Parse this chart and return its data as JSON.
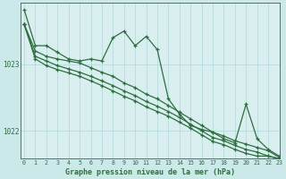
{
  "background_color": "#cce9e9",
  "plot_bg_color": "#d9efef",
  "grid_color": "#b2d8d8",
  "line_color": "#2d6e3e",
  "xlabel": "Graphe pression niveau de la mer (hPa)",
  "ylim": [
    1021.58,
    1023.92
  ],
  "xlim": [
    -0.3,
    23
  ],
  "yticks": [
    1022,
    1023
  ],
  "xtick_labels": [
    "0",
    "1",
    "2",
    "3",
    "4",
    "5",
    "6",
    "7",
    "8",
    "9",
    "10",
    "11",
    "12",
    "13",
    "14",
    "15",
    "16",
    "17",
    "18",
    "19",
    "20",
    "21",
    "22",
    "23"
  ],
  "s1": [
    1023.82,
    1023.28,
    1023.28,
    1023.18,
    1023.08,
    1023.05,
    1023.08,
    1023.05,
    1023.4,
    1023.5,
    1023.28,
    1023.42,
    1023.22,
    1022.48,
    1022.25,
    1022.08,
    1022.02,
    1021.98,
    1021.88,
    1021.82,
    1022.4,
    1021.88,
    1021.72,
    1021.62
  ],
  "s2": [
    1023.6,
    1023.2,
    1023.12,
    1023.08,
    1023.05,
    1023.02,
    1022.95,
    1022.88,
    1022.82,
    1022.72,
    1022.65,
    1022.55,
    1022.48,
    1022.38,
    1022.28,
    1022.18,
    1022.08,
    1021.98,
    1021.92,
    1021.85,
    1021.8,
    1021.75,
    1021.7,
    1021.6
  ],
  "s3": [
    1023.6,
    1023.12,
    1023.05,
    1022.98,
    1022.93,
    1022.88,
    1022.82,
    1022.75,
    1022.68,
    1022.6,
    1022.53,
    1022.44,
    1022.37,
    1022.29,
    1022.2,
    1022.1,
    1022.0,
    1021.9,
    1021.85,
    1021.78,
    1021.72,
    1021.68,
    1021.62,
    1021.58
  ],
  "s4": [
    1023.6,
    1023.08,
    1022.98,
    1022.92,
    1022.87,
    1022.82,
    1022.75,
    1022.68,
    1022.6,
    1022.52,
    1022.45,
    1022.36,
    1022.29,
    1022.22,
    1022.13,
    1022.04,
    1021.94,
    1021.84,
    1021.79,
    1021.72,
    1021.66,
    1021.62,
    1021.62,
    1021.58
  ],
  "figsize": [
    3.2,
    2.0
  ],
  "dpi": 100,
  "xlabel_fontsize": 6,
  "tick_fontsize": 4.8,
  "ytick_fontsize": 5.5,
  "linewidth": 0.9,
  "markersize": 3.0
}
